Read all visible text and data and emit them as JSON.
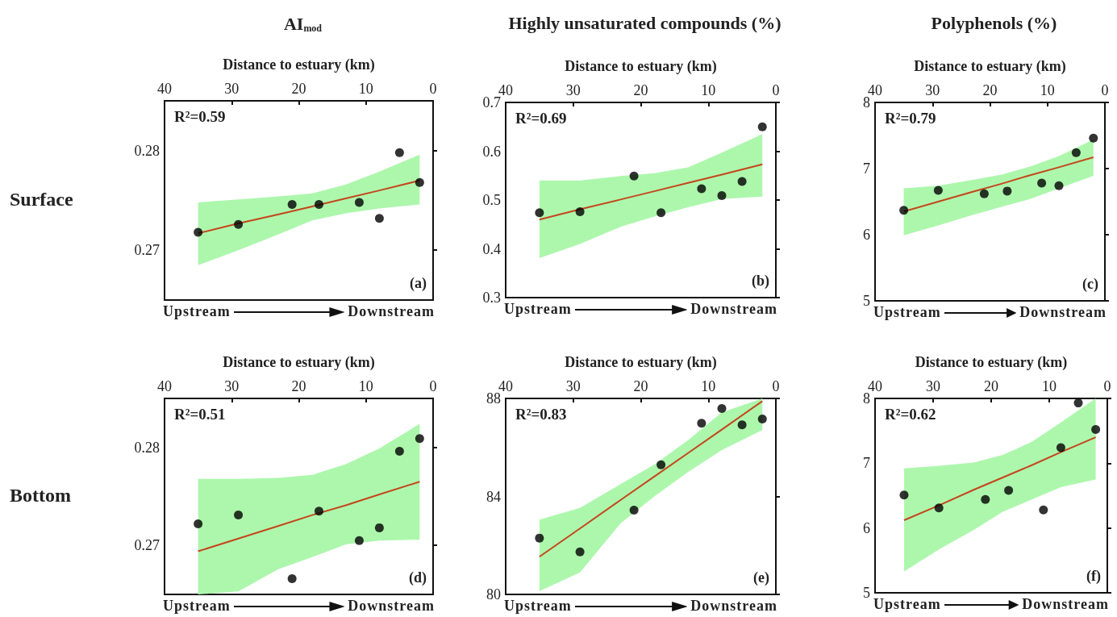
{
  "chart_data": [
    {
      "type": "scatter",
      "title": "AI$_{mod}$",
      "xlabel": "Distance to estuary (km)",
      "ylabel": "Surface",
      "xlim": [
        40,
        0
      ],
      "xticks": [
        40,
        30,
        20,
        10,
        0
      ],
      "ylim": [
        0.265,
        0.285
      ],
      "yticks": [
        0.27,
        0.28
      ],
      "annotations": [
        "R²=0.59",
        "(a)",
        "Upstream",
        "Downstream"
      ],
      "series": [
        {
          "marker": "circle",
          "color": "#000000",
          "x": [
            35,
            29,
            21,
            17,
            11,
            8,
            5,
            2
          ],
          "values": [
            0.2718,
            0.2726,
            0.2746,
            0.2746,
            0.2748,
            0.2732,
            0.2798,
            0.2768
          ]
        },
        {
          "type": "line",
          "color": "#c4461c",
          "x": [
            35,
            29,
            23,
            18,
            13,
            8,
            2
          ],
          "values": [
            0.2717,
            0.2727,
            0.2736,
            0.2744,
            0.2752,
            0.276,
            0.277
          ],
          "lower": [
            0.2685,
            0.27,
            0.2716,
            0.273,
            0.2737,
            0.2742,
            0.2746
          ],
          "upper": [
            0.2748,
            0.2751,
            0.2754,
            0.2757,
            0.2766,
            0.2779,
            0.2796
          ]
        }
      ]
    },
    {
      "type": "scatter",
      "title": "Highly unsaturated compounds (%)",
      "xlabel": "Distance to estuary (km)",
      "xlim": [
        40,
        0
      ],
      "xticks": [
        40,
        30,
        20,
        10,
        0
      ],
      "ylim": [
        0.3,
        0.7
      ],
      "yticks": [
        0.3,
        0.4,
        0.5,
        0.6,
        0.7
      ],
      "annotations": [
        "R²=0.69",
        "(b)",
        "Upstream",
        "Downstream"
      ],
      "series": [
        {
          "marker": "circle",
          "color": "#000000",
          "x": [
            35,
            29,
            21,
            17,
            11,
            8,
            5,
            2
          ],
          "values": [
            0.474,
            0.476,
            0.549,
            0.474,
            0.523,
            0.509,
            0.538,
            0.65
          ]
        },
        {
          "type": "line",
          "color": "#c4461c",
          "x": [
            35,
            29,
            23,
            18,
            13,
            8,
            2
          ],
          "values": [
            0.46,
            0.481,
            0.501,
            0.518,
            0.535,
            0.552,
            0.573
          ],
          "lower": [
            0.381,
            0.41,
            0.445,
            0.466,
            0.485,
            0.502,
            0.507
          ],
          "upper": [
            0.54,
            0.54,
            0.549,
            0.555,
            0.567,
            0.597,
            0.635
          ]
        }
      ]
    },
    {
      "type": "scatter",
      "title": "Polyphenols (%)",
      "xlabel": "Distance to estuary (km)",
      "xlim": [
        40,
        0
      ],
      "xticks": [
        40,
        30,
        20,
        10,
        0
      ],
      "ylim": [
        5,
        8
      ],
      "yticks": [
        5,
        6,
        7,
        8
      ],
      "annotations": [
        "R²=0.79",
        "(c)",
        "Upstream",
        "Downstream"
      ],
      "series": [
        {
          "marker": "circle",
          "color": "#000000",
          "x": [
            35,
            29,
            21,
            17,
            11,
            8,
            5,
            2
          ],
          "values": [
            6.37,
            6.67,
            6.62,
            6.66,
            6.78,
            6.74,
            7.24,
            7.46
          ]
        },
        {
          "type": "line",
          "color": "#c4461c",
          "x": [
            35,
            29,
            23,
            18,
            13,
            8,
            2
          ],
          "values": [
            6.35,
            6.5,
            6.65,
            6.77,
            6.9,
            7.02,
            7.17
          ],
          "lower": [
            5.99,
            6.14,
            6.3,
            6.42,
            6.54,
            6.7,
            6.89
          ],
          "upper": [
            6.7,
            6.74,
            6.83,
            6.91,
            7.03,
            7.19,
            7.44
          ]
        }
      ]
    },
    {
      "type": "scatter",
      "xlabel": "Distance to estuary (km)",
      "ylabel": "Bottom",
      "xlim": [
        40,
        0
      ],
      "xticks": [
        40,
        30,
        20,
        10,
        0
      ],
      "ylim": [
        0.265,
        0.285
      ],
      "yticks": [
        0.27,
        0.28
      ],
      "annotations": [
        "R²=0.51",
        "(d)",
        "Upstream",
        "Downstream"
      ],
      "series": [
        {
          "marker": "circle",
          "color": "#000000",
          "x": [
            35,
            29,
            21,
            17,
            11,
            8,
            5,
            2
          ],
          "values": [
            0.2722,
            0.2731,
            0.2666,
            0.2735,
            0.2705,
            0.2718,
            0.2796,
            0.2809
          ]
        },
        {
          "type": "line",
          "color": "#c4461c",
          "x": [
            35,
            29,
            23,
            18,
            13,
            8,
            2
          ],
          "values": [
            0.2694,
            0.2707,
            0.272,
            0.2731,
            0.2741,
            0.2752,
            0.2765
          ],
          "lower": [
            0.265,
            0.2653,
            0.2676,
            0.2688,
            0.2701,
            0.2705,
            0.2706
          ],
          "upper": [
            0.2768,
            0.2768,
            0.2769,
            0.2772,
            0.2783,
            0.2799,
            0.2824
          ]
        }
      ]
    },
    {
      "type": "scatter",
      "xlabel": "Distance to estuary (km)",
      "xlim": [
        40,
        0
      ],
      "xticks": [
        40,
        30,
        20,
        10,
        0
      ],
      "ylim": [
        80,
        88
      ],
      "yticks": [
        80,
        84,
        88
      ],
      "annotations": [
        "R²=0.83",
        "(e)",
        "Upstream",
        "Downstream"
      ],
      "series": [
        {
          "marker": "circle",
          "color": "#000000",
          "x": [
            35,
            29,
            21,
            17,
            11,
            8,
            5,
            2
          ],
          "values": [
            82.3,
            81.74,
            83.44,
            85.29,
            86.99,
            87.59,
            86.92,
            87.16
          ]
        },
        {
          "type": "line",
          "color": "#c4461c",
          "x": [
            35,
            29,
            23,
            18,
            13,
            8,
            2
          ],
          "values": [
            81.54,
            82.69,
            83.85,
            84.81,
            85.77,
            86.73,
            87.89
          ],
          "lower": [
            80.13,
            80.9,
            82.9,
            84.0,
            85.0,
            85.89,
            86.71
          ],
          "upper": [
            83.05,
            83.53,
            84.5,
            85.3,
            86.3,
            87.43,
            88
          ]
        }
      ]
    },
    {
      "type": "scatter",
      "xlabel": "Distance to estuary (km)",
      "xlim": [
        40,
        0
      ],
      "xticks": [
        40,
        30,
        20,
        10,
        0
      ],
      "ylim": [
        5,
        8
      ],
      "yticks": [
        5,
        6,
        7,
        8
      ],
      "annotations": [
        "R²=0.62",
        "(f)",
        "Upstream",
        "Downstream"
      ],
      "series": [
        {
          "marker": "circle",
          "color": "#000000",
          "x": [
            35,
            29,
            21,
            17,
            11,
            8,
            5,
            2
          ],
          "values": [
            6.51,
            6.31,
            6.44,
            6.58,
            6.28,
            7.24,
            7.93,
            7.52
          ]
        },
        {
          "type": "line",
          "color": "#c4461c",
          "x": [
            35,
            29,
            23,
            18,
            13,
            8,
            2
          ],
          "values": [
            6.12,
            6.35,
            6.59,
            6.78,
            6.97,
            7.17,
            7.4
          ],
          "lower": [
            5.33,
            5.67,
            5.97,
            6.25,
            6.44,
            6.63,
            6.75
          ],
          "upper": [
            6.92,
            6.96,
            7.01,
            7.13,
            7.33,
            7.63,
            8.0
          ]
        }
      ]
    }
  ]
}
